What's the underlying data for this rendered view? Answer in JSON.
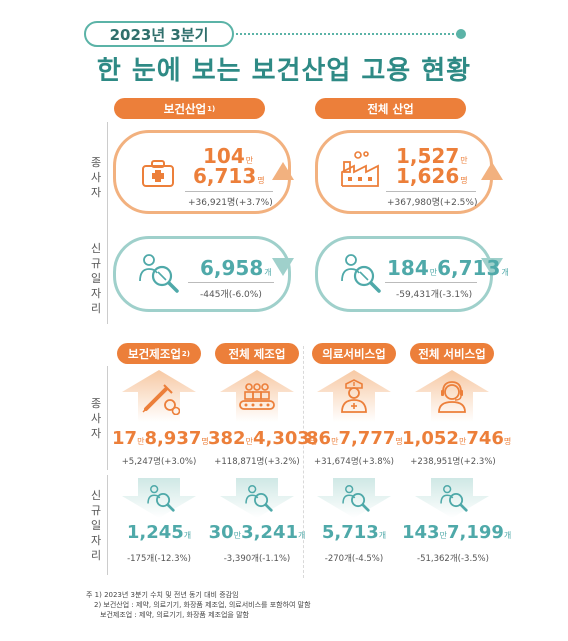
{
  "header": {
    "period": "2023년 3분기",
    "title": "한 눈에 보는 보건산업 고용 현황"
  },
  "side_labels": {
    "employees": [
      "종",
      "사",
      "자"
    ],
    "new_jobs": [
      "신",
      "규",
      "일",
      "자",
      "리"
    ]
  },
  "top": {
    "health": {
      "label": "보건산업",
      "label_note": "1)",
      "emp_line1": "104",
      "emp_line1_unit": "만",
      "emp_line2": "6,713",
      "emp_line2_unit": "명",
      "emp_change": "+36,921명(+3.7%)",
      "jobs_value": "6,958",
      "jobs_unit": "개",
      "jobs_change": "-445개(-6.0%)"
    },
    "total": {
      "label": "전체 산업",
      "emp_line1": "1,527",
      "emp_line1_unit": "만",
      "emp_line2": "1,626",
      "emp_line2_unit": "명",
      "emp_change": "+367,980명(+2.5%)",
      "jobs_value_a": "184",
      "jobs_unit_a": "만",
      "jobs_value_b": "6,713",
      "jobs_unit_b": "개",
      "jobs_change": "-59,431개(-3.1%)"
    }
  },
  "bottom": [
    {
      "label": "보건제조업",
      "label_note": "2)",
      "emp_a": "17",
      "emp_unit_a": "만",
      "emp_b": "8,937",
      "emp_unit_b": "명",
      "emp_change": "+5,247명(+3.0%)",
      "jobs_a": "",
      "jobs_unit_a": "",
      "jobs_b": "1,245",
      "jobs_unit_b": "개",
      "jobs_change": "-175개(-12.3%)",
      "icon_emp": "medicine-icon"
    },
    {
      "label": "전체 제조업",
      "label_note": "",
      "emp_a": "382",
      "emp_unit_a": "만",
      "emp_b": "4,303",
      "emp_unit_b": "명",
      "emp_change": "+118,871명(+3.2%)",
      "jobs_a": "30",
      "jobs_unit_a": "만",
      "jobs_b": "3,241",
      "jobs_unit_b": "개",
      "jobs_change": "-3,390개(-1.1%)",
      "icon_emp": "conveyor-icon"
    },
    {
      "label": "의료서비스업",
      "label_note": "",
      "emp_a": "86",
      "emp_unit_a": "만",
      "emp_b": "7,777",
      "emp_unit_b": "명",
      "emp_change": "+31,674명(+3.8%)",
      "jobs_a": "",
      "jobs_unit_a": "",
      "jobs_b": "5,713",
      "jobs_unit_b": "개",
      "jobs_change": "-270개(-4.5%)",
      "icon_emp": "nurse-icon"
    },
    {
      "label": "전체 서비스업",
      "label_note": "",
      "emp_a": "",
      "emp_unit_a": "",
      "emp_b": "1,052",
      "emp_unit_b": "만",
      "emp_c": "746",
      "emp_unit_c": "명",
      "emp_change": "+238,951명(+2.3%)",
      "jobs_a": "143",
      "jobs_unit_a": "만",
      "jobs_b": "7,199",
      "jobs_unit_b": "개",
      "jobs_change": "-51,362개(-3.5%)",
      "icon_emp": "headset-agent-icon"
    }
  ],
  "footnotes": [
    "주 1) 2023년 3분기 수치 및 전년 동기 대비 증감임",
    "2) 보건산업 : 제약, 의료기기, 화장품 제조업, 의료서비스를 포함하여 말함",
    "보건제조업 : 제약, 의료기기, 화장품 제조업을 말함"
  ],
  "colors": {
    "orange": "#ec7f3a",
    "teal": "#4fa9a9",
    "title_teal": "#2e8a85"
  }
}
